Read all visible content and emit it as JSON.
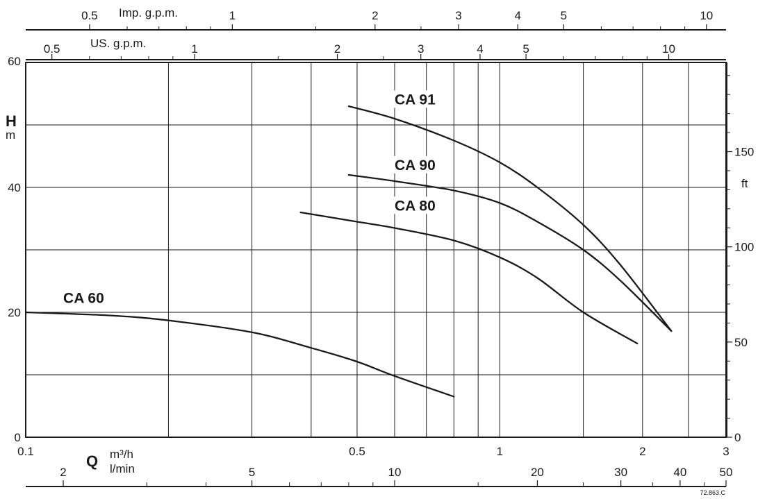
{
  "chart_data": {
    "type": "line",
    "x_scale": "log",
    "y_scale": "linear",
    "xlim": [
      0.1,
      3
    ],
    "ylim": [
      0,
      60
    ],
    "grid": true,
    "x_axis_primary": {
      "symbol": "Q",
      "unit": "m³/h",
      "ticks": [
        0.1,
        0.5,
        1,
        2,
        3
      ],
      "tick_labels": [
        "0.1",
        "0.5",
        "1",
        "2",
        "3"
      ],
      "gridlines": [
        0.2,
        0.3,
        0.4,
        0.5,
        0.6,
        0.7,
        0.8,
        0.9,
        1,
        1.5,
        2,
        2.5
      ]
    },
    "x_axis_lmin": {
      "unit": "l/min",
      "ticks": [
        2,
        5,
        10,
        20,
        30,
        40,
        50
      ],
      "tick_labels": [
        "2",
        "5",
        "10",
        "20",
        "30",
        "40",
        "50"
      ],
      "minor": [
        3,
        4,
        6,
        7,
        8,
        9,
        15,
        25,
        35,
        45
      ]
    },
    "x_axis_us_gpm": {
      "name": "US. g.p.m.",
      "ticks": [
        0.5,
        1,
        2,
        3,
        4,
        5,
        10
      ],
      "tick_labels": [
        "0.5",
        "1",
        "2",
        "3",
        "4",
        "5",
        "10"
      ],
      "minor": [
        0.6,
        0.7,
        0.8,
        0.9,
        1.5,
        2.5,
        6,
        7,
        8,
        9
      ]
    },
    "x_axis_imp_gpm": {
      "name": "Imp. g.p.m.",
      "ticks": [
        0.5,
        1,
        2,
        3,
        4,
        5,
        10
      ],
      "tick_labels": [
        "0.5",
        "1",
        "2",
        "3",
        "4",
        "5",
        "10"
      ],
      "minor": [
        0.6,
        0.7,
        0.8,
        0.9,
        1.5,
        2.5,
        6,
        7,
        8,
        9
      ]
    },
    "y_axis_left": {
      "symbol": "H",
      "unit": "m",
      "ticks": [
        0,
        20,
        40,
        60
      ],
      "tick_labels": [
        "0",
        "20",
        "40",
        "60"
      ],
      "gridlines": [
        10,
        20,
        30,
        40,
        50
      ]
    },
    "y_axis_right": {
      "unit": "ft",
      "ticks": [
        0,
        50,
        100,
        150
      ],
      "tick_labels": [
        "0",
        "50",
        "100",
        "150"
      ],
      "minor": [
        10,
        20,
        30,
        40,
        60,
        70,
        80,
        90,
        110,
        120,
        130,
        140,
        160,
        170,
        180,
        190
      ]
    },
    "series": [
      {
        "name": "CA 60",
        "label_at": [
          0.12,
          21.5
        ],
        "x": [
          0.1,
          0.15,
          0.2,
          0.3,
          0.4,
          0.5,
          0.6,
          0.8
        ],
        "y": [
          20,
          19.5,
          18.7,
          16.8,
          14.3,
          12.1,
          9.8,
          6.5
        ]
      },
      {
        "name": "CA 80",
        "label_at": [
          0.6,
          36.3
        ],
        "x": [
          0.38,
          0.5,
          0.6,
          0.8,
          1.0,
          1.2,
          1.5,
          1.95
        ],
        "y": [
          36,
          34.5,
          33.5,
          31.5,
          28.8,
          25.5,
          20,
          15
        ]
      },
      {
        "name": "CA 90",
        "label_at": [
          0.6,
          42.8
        ],
        "x": [
          0.48,
          0.6,
          0.8,
          1.0,
          1.2,
          1.5,
          1.8,
          2.3
        ],
        "y": [
          42,
          41,
          39.5,
          37.5,
          34.5,
          30,
          25,
          17
        ]
      },
      {
        "name": "CA 91",
        "label_at": [
          0.6,
          53.3
        ],
        "x": [
          0.48,
          0.6,
          0.8,
          1.0,
          1.2,
          1.5,
          1.8,
          2.3
        ],
        "y": [
          53,
          51,
          47.5,
          44,
          40,
          34,
          27.5,
          17
        ]
      }
    ],
    "colors": {
      "line": "#1a1a1a",
      "grid": "#1a1a1a",
      "background": "#ffffff"
    },
    "code": "72.863.C"
  }
}
